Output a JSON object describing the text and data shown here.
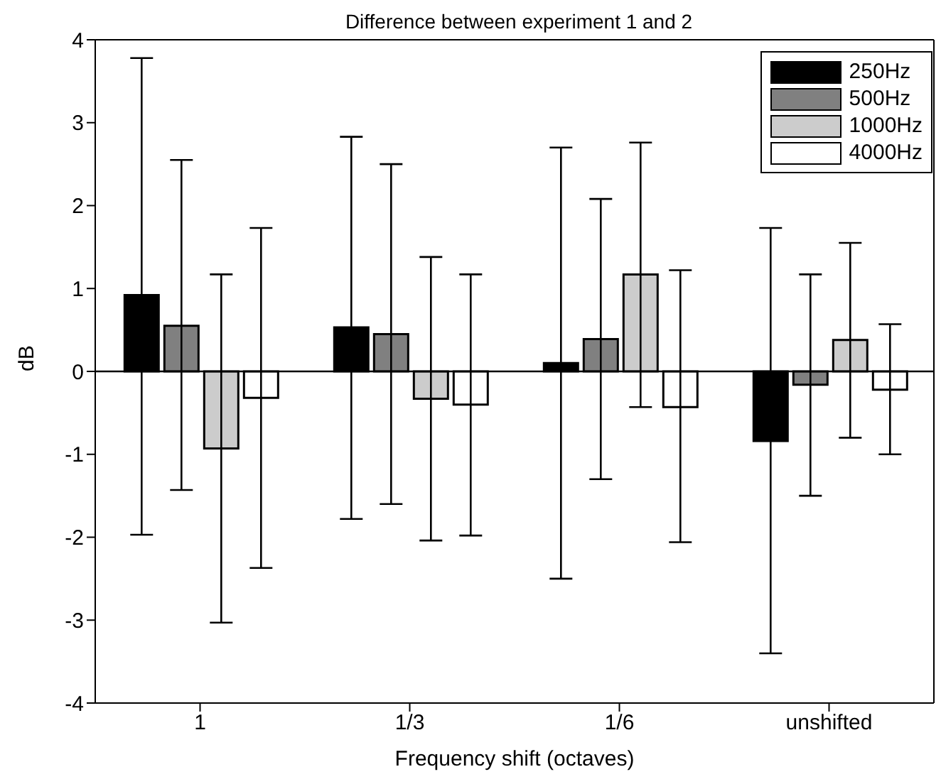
{
  "chart_data": {
    "type": "bar",
    "title": "Difference between experiment 1 and 2",
    "xlabel": "Frequency shift (octaves)",
    "ylabel": "dB",
    "categories": [
      "1",
      "1/3",
      "1/6",
      "unshifted"
    ],
    "series": [
      {
        "name": "250Hz",
        "color": "#000000",
        "values": [
          0.92,
          0.53,
          0.1,
          -0.84
        ],
        "errors": [
          [
            -1.97,
            3.78
          ],
          [
            -1.78,
            2.83
          ],
          [
            -2.5,
            2.7
          ],
          [
            -3.4,
            1.73
          ]
        ]
      },
      {
        "name": "500Hz",
        "color": "#808080",
        "values": [
          0.55,
          0.45,
          0.39,
          -0.16
        ],
        "errors": [
          [
            -1.43,
            2.55
          ],
          [
            -1.6,
            2.5
          ],
          [
            -1.3,
            2.08
          ],
          [
            -1.5,
            1.17
          ]
        ]
      },
      {
        "name": "1000Hz",
        "color": "#cccccc",
        "values": [
          -0.93,
          -0.33,
          1.17,
          0.38
        ],
        "errors": [
          [
            -3.03,
            1.17
          ],
          [
            -2.04,
            1.38
          ],
          [
            -0.43,
            2.76
          ],
          [
            -0.8,
            1.55
          ]
        ]
      },
      {
        "name": "4000Hz",
        "color": "#ffffff",
        "values": [
          -0.32,
          -0.4,
          -0.43,
          -0.22
        ],
        "errors": [
          [
            -2.37,
            1.73
          ],
          [
            -1.98,
            1.17
          ],
          [
            -2.06,
            1.22
          ],
          [
            -1.0,
            0.57
          ]
        ]
      }
    ],
    "ylim": [
      -4,
      4
    ],
    "yticks": [
      -4,
      -3,
      -2,
      -1,
      0,
      1,
      2,
      3,
      4
    ],
    "grid": false,
    "legend": "top right",
    "ref_lines": [
      {
        "axis": "y",
        "value": 0
      }
    ]
  }
}
